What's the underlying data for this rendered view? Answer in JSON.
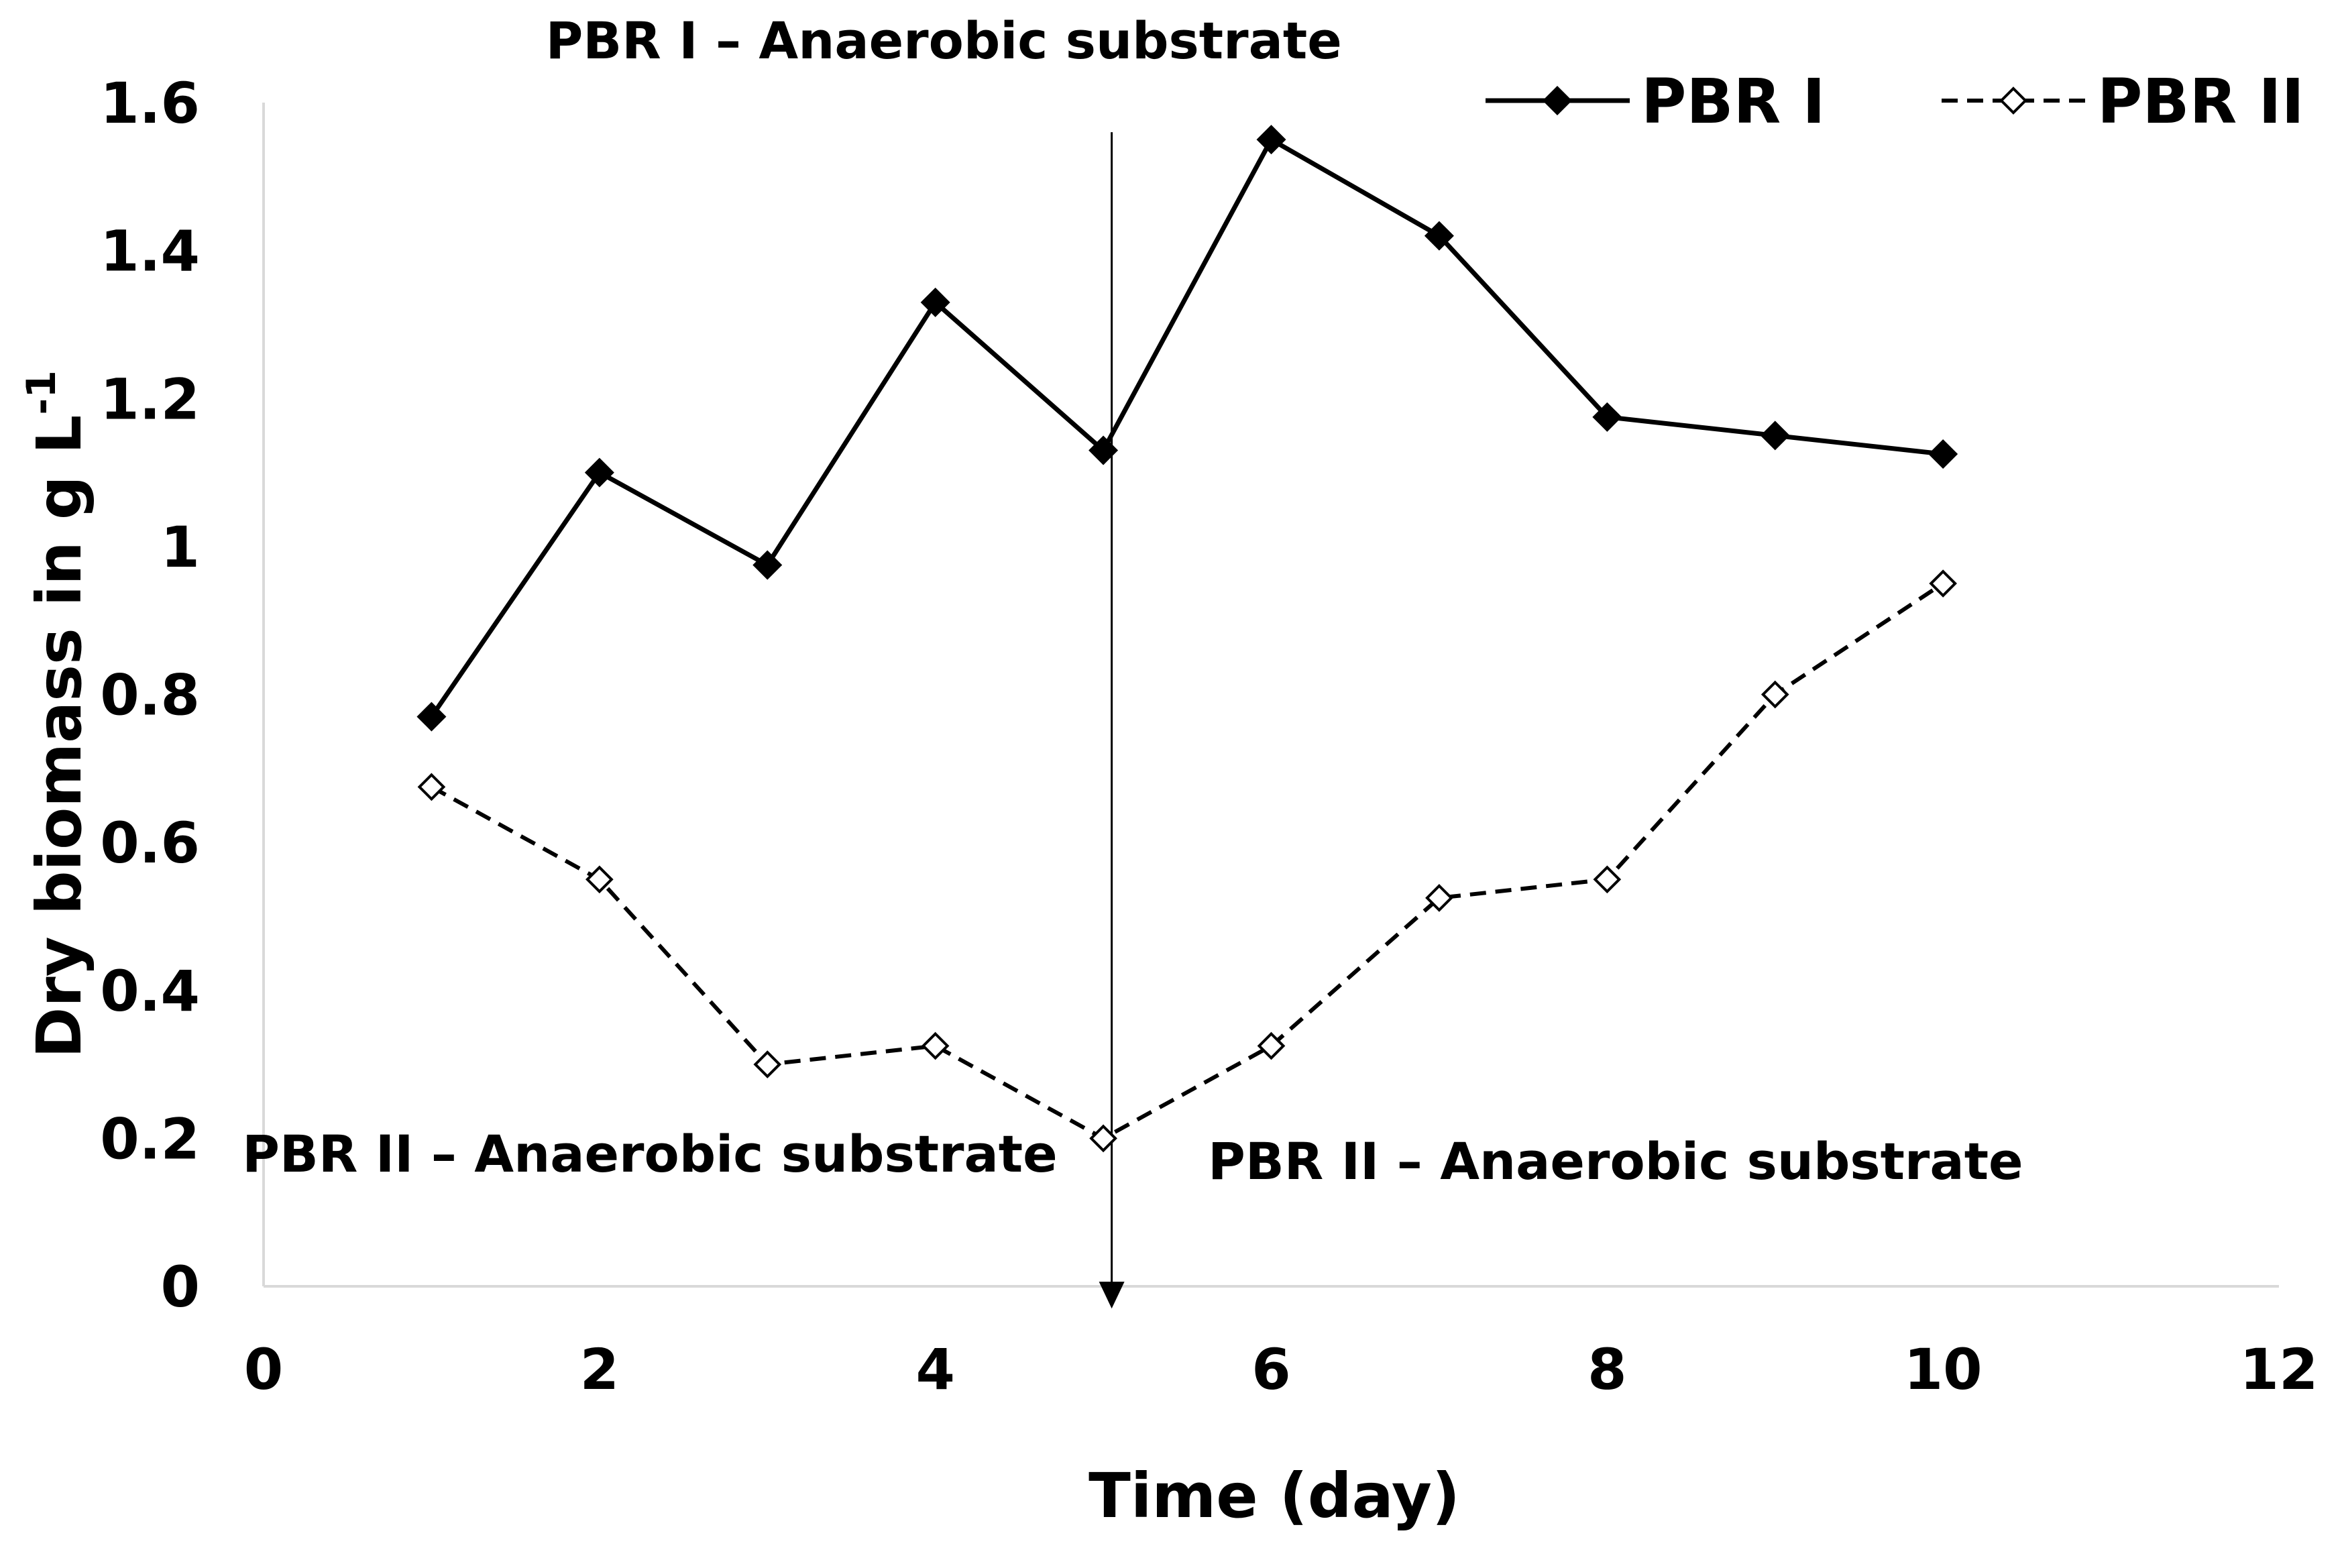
{
  "chart_data": {
    "type": "line",
    "xlabel": "Time (day)",
    "ylabel_main": "Dry biomass in g L",
    "ylabel_sup": "-1",
    "xlim": [
      0,
      12
    ],
    "ylim": [
      0,
      1.6
    ],
    "xticks": [
      0,
      2,
      4,
      6,
      8,
      10,
      12
    ],
    "yticks": [
      0,
      0.2,
      0.4,
      0.6,
      0.8,
      1,
      1.2,
      1.4,
      1.6
    ],
    "ytick_labels": [
      "0",
      "0.2",
      "0.4",
      "0.6",
      "0.8",
      "1",
      "1.2",
      "1.4",
      "1.6"
    ],
    "legend_position": "top-right",
    "series": [
      {
        "name": "PBR I",
        "color": "#000000",
        "line_style": "solid",
        "marker": "filled-diamond",
        "x": [
          1,
          2,
          3,
          4,
          5,
          6,
          7,
          8,
          9,
          10
        ],
        "values": [
          0.77,
          1.1,
          0.975,
          1.33,
          1.13,
          1.55,
          1.42,
          1.175,
          1.15,
          1.125
        ]
      },
      {
        "name": "PBR II",
        "color": "#000000",
        "line_style": "dashed",
        "marker": "hollow-diamond",
        "x": [
          1,
          2,
          3,
          4,
          5,
          6,
          7,
          8,
          9,
          10
        ],
        "values": [
          0.675,
          0.55,
          0.3,
          0.325,
          0.2,
          0.325,
          0.525,
          0.55,
          0.8,
          0.95
        ]
      }
    ],
    "divider": {
      "x": 5.05,
      "y_top": 1.56,
      "y_bottom": -0.03,
      "arrow": "down"
    },
    "annotations": [
      {
        "id": "top",
        "text": "PBR I – Anaerobic substrate",
        "x": 4.05,
        "y": 1.66
      },
      {
        "id": "left",
        "text": "PBR II – Anaerobic substrate",
        "x": 2.3,
        "y": 0.155
      },
      {
        "id": "right",
        "text": "PBR II – Anaerobic substrate",
        "x": 8.05,
        "y": 0.145
      }
    ]
  }
}
